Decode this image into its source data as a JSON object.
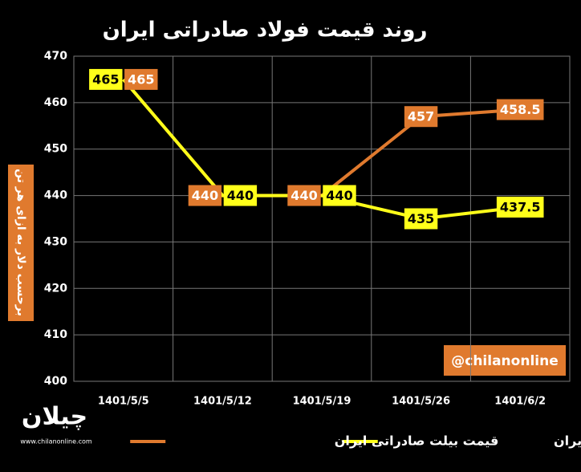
{
  "chart_data": {
    "type": "line",
    "title": "روند قیمت فولاد صادراتی ایران",
    "y_label": "برحسب دلار به ازای هر تن",
    "categories": [
      "1401/5/5",
      "1401/5/12",
      "1401/5/19",
      "1401/5/26",
      "1401/6/2"
    ],
    "series": [
      {
        "name": "قیمت بیلت صادراتی ایران",
        "color": "#e07a2e",
        "values": [
          465,
          440,
          440,
          457,
          458.5
        ]
      },
      {
        "name": "قیمت اسلب صادراتی ایران",
        "color": "#ffff1a",
        "values": [
          465,
          440,
          440,
          435,
          437.5
        ]
      }
    ],
    "ylim": [
      400,
      470
    ],
    "yticks": [
      400,
      410,
      420,
      430,
      440,
      450,
      460,
      470
    ],
    "grid": true,
    "annotation": "@chilanonline",
    "logo": "چیلان",
    "logo_url": "www.chilanonline.com"
  }
}
